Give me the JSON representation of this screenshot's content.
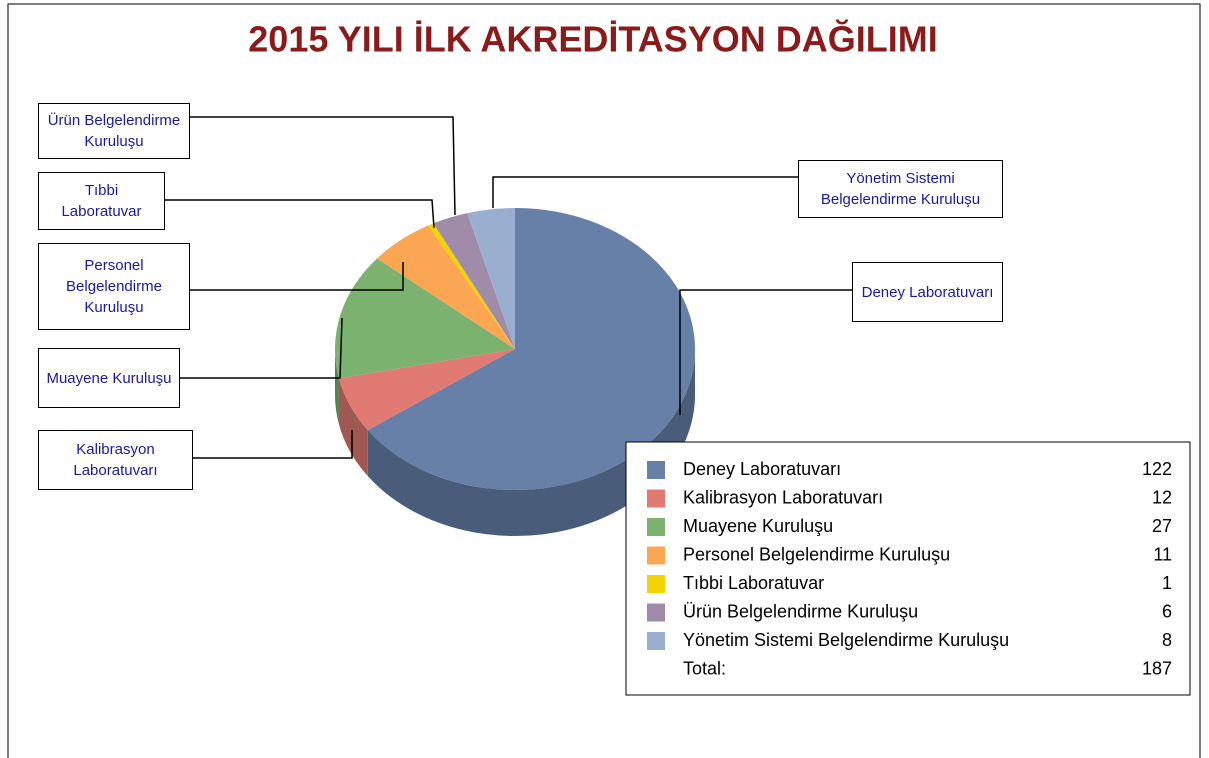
{
  "chart_data": {
    "type": "pie3d",
    "title": "2015 YILI İLK AKREDİTASYON DAĞILIMI",
    "categories": [
      "Deney Laboratuvarı",
      "Kalibrasyon Laboratuvarı",
      "Muayene Kuruluşu",
      "Personel Belgelendirme Kuruluşu",
      "Tıbbi Laboratuvar",
      "Ürün Belgelendirme Kuruluşu",
      "Yönetim Sistemi Belgelendirme Kuruluşu"
    ],
    "values": [
      122,
      12,
      27,
      11,
      1,
      6,
      8
    ],
    "colors": [
      "#6680a8",
      "#e07a72",
      "#7cb270",
      "#fba653",
      "#f2d500",
      "#a08ca8",
      "#9aaecf"
    ],
    "total_label": "Total:",
    "total": 187,
    "legend": "bottom-right"
  }
}
